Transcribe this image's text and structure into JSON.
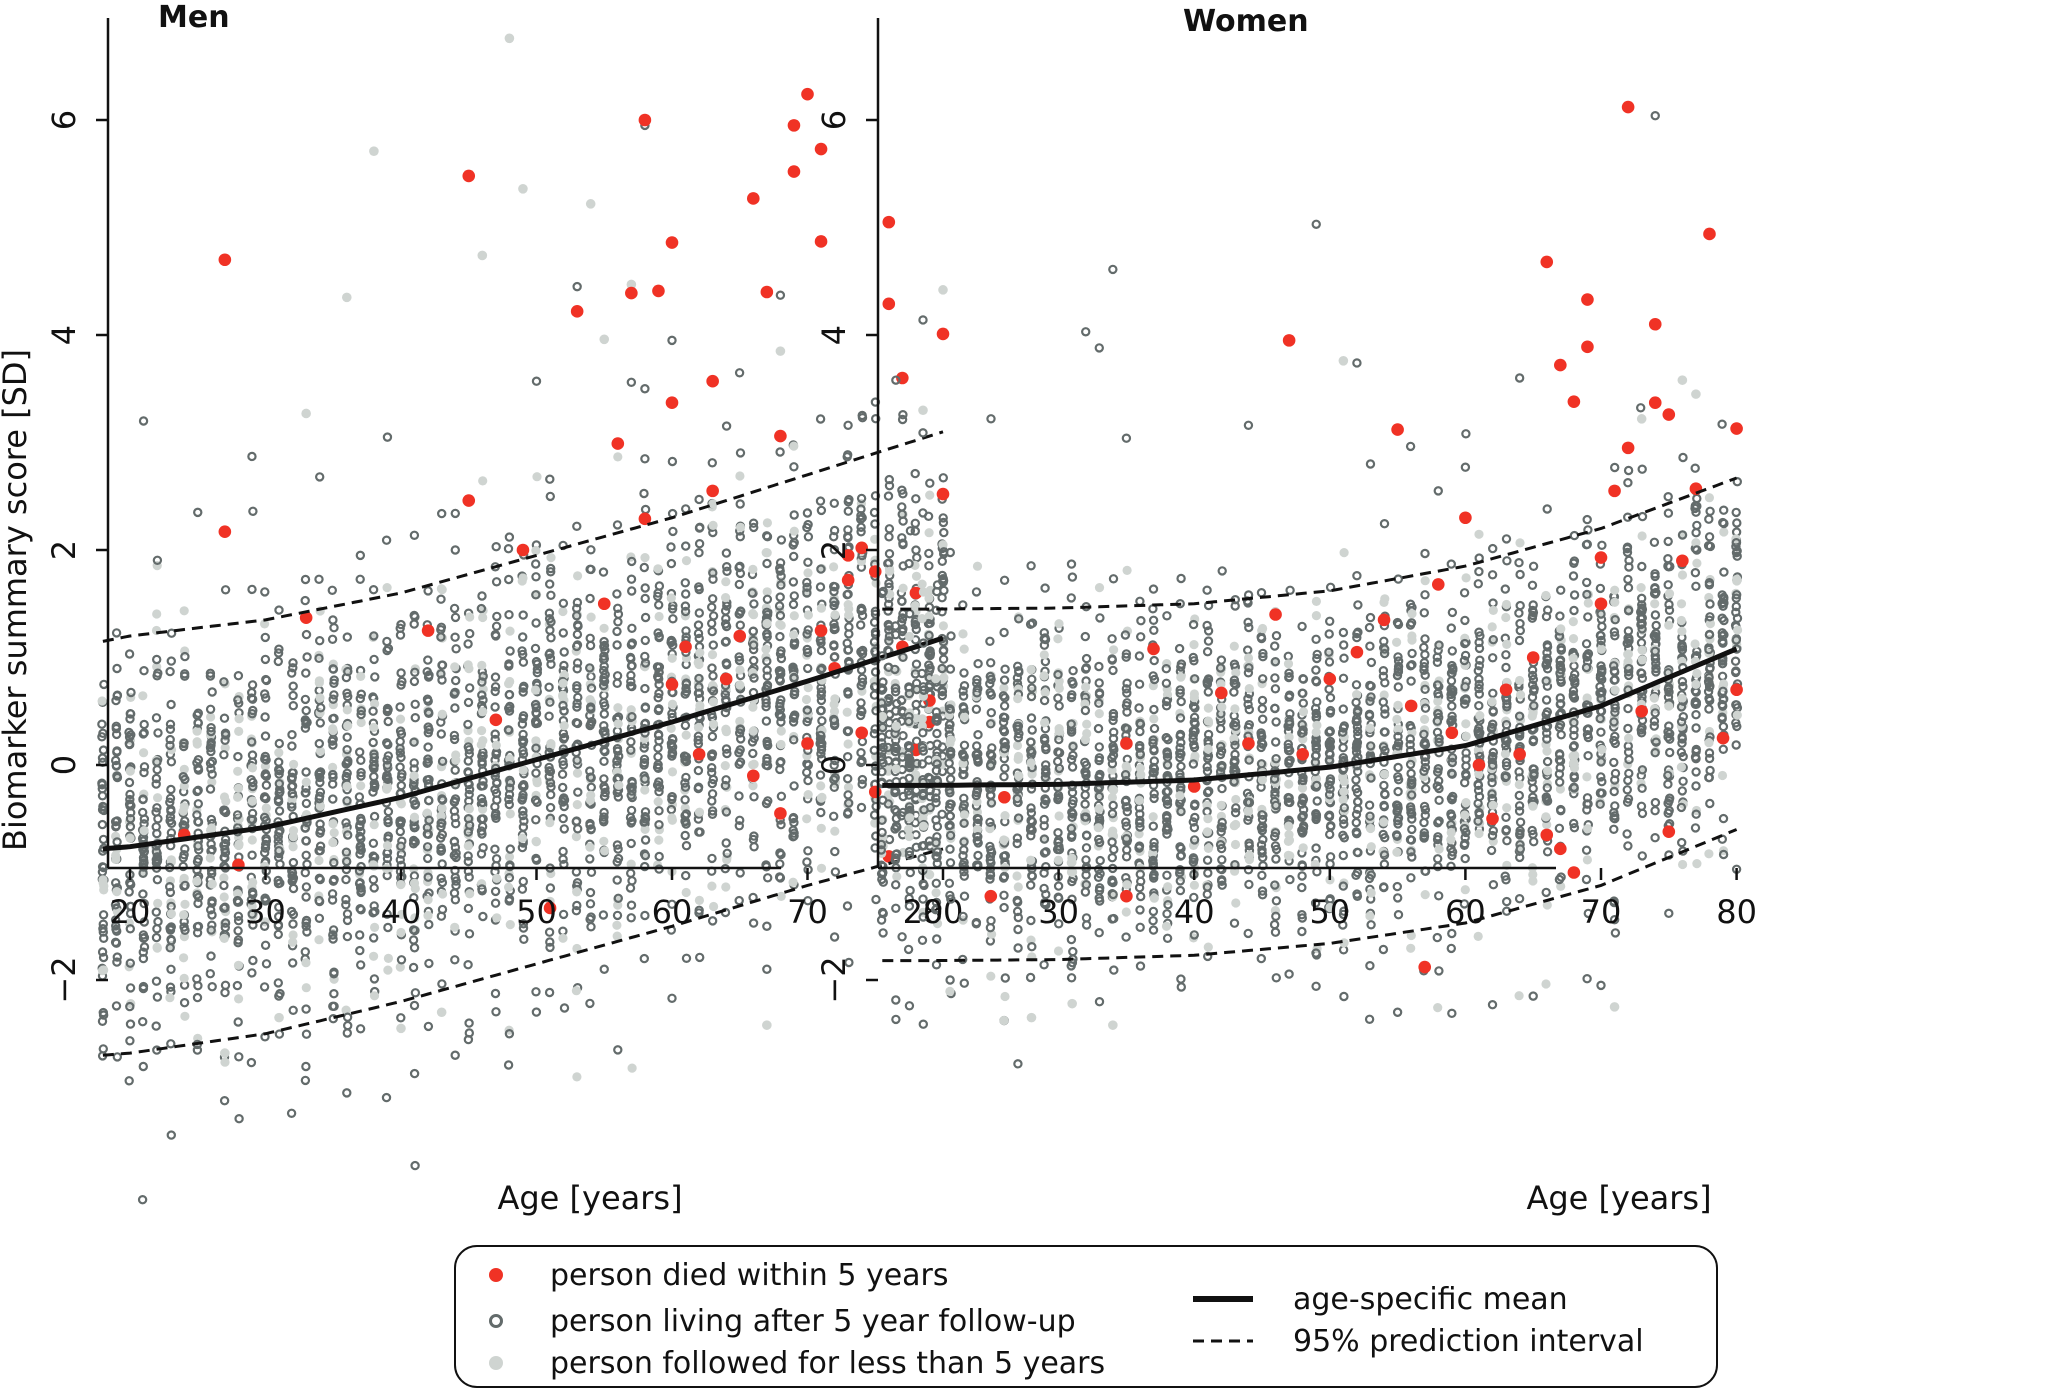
{
  "colors": {
    "died": "#f03225",
    "living": "#636b6b",
    "followed_less": "#cfd4d1",
    "line": "#111111"
  },
  "ylabel": "Biomarker summary score [SD]",
  "xlabel": "Age [years]",
  "legend": {
    "died": "person died within 5 years",
    "living": "person living after 5 year follow-up",
    "followed_less": "person followed for less than 5 years",
    "mean": "age-specific mean",
    "interval": "95% prediction interval"
  },
  "chart_data": [
    {
      "type": "scatter",
      "title": "Men",
      "xlabel": "Age [years]",
      "ylabel": "Biomarker summary score [SD]",
      "xlim": [
        18,
        80
      ],
      "ylim": [
        -3.4,
        6.9
      ],
      "xticks": [
        20,
        30,
        40,
        50,
        60,
        70,
        80
      ],
      "yticks": [
        -2,
        0,
        2,
        4,
        6
      ],
      "ytick_labels": [
        "−2",
        "0",
        "2",
        "4",
        "6"
      ],
      "grid": false,
      "legend_position": "bottom",
      "mean_curve": {
        "name": "age-specific mean",
        "x": [
          18,
          20,
          30,
          40,
          50,
          60,
          70,
          80
        ],
        "y": [
          -0.78,
          -0.76,
          -0.58,
          -0.3,
          0.05,
          0.4,
          0.78,
          1.18
        ]
      },
      "interval_upper": {
        "name": "95% prediction interval",
        "x": [
          18,
          20,
          30,
          40,
          50,
          60,
          70,
          80
        ],
        "y": [
          1.15,
          1.2,
          1.35,
          1.6,
          1.95,
          2.3,
          2.7,
          3.1
        ]
      },
      "interval_lower": {
        "name": "95% prediction interval",
        "x": [
          18,
          20,
          30,
          40,
          50,
          60,
          70,
          80
        ],
        "y": [
          -2.7,
          -2.68,
          -2.5,
          -2.2,
          -1.85,
          -1.5,
          -1.12,
          -0.78
        ]
      },
      "died_points": {
        "x": [
          27,
          27,
          33,
          45,
          45,
          49,
          53,
          56,
          57,
          58,
          59,
          60,
          60,
          61,
          63,
          66,
          67,
          68,
          69,
          69,
          70,
          71,
          71,
          73,
          76,
          76,
          77,
          78,
          80,
          80,
          24,
          28,
          42,
          47,
          51,
          55,
          62,
          64,
          65,
          72,
          74,
          75,
          79,
          58,
          66,
          68,
          70,
          73,
          75,
          77,
          79,
          60,
          63,
          71,
          74,
          76,
          78
        ],
        "y": [
          4.7,
          2.17,
          1.37,
          5.48,
          2.46,
          2.0,
          4.22,
          2.99,
          4.39,
          6.0,
          4.41,
          4.86,
          3.37,
          1.1,
          3.57,
          5.27,
          4.4,
          3.06,
          5.95,
          5.52,
          6.24,
          5.73,
          4.87,
          1.72,
          5.05,
          4.29,
          3.6,
          1.6,
          4.01,
          2.52,
          -0.65,
          -0.93,
          1.25,
          0.42,
          -1.33,
          1.5,
          0.1,
          0.8,
          1.2,
          0.9,
          0.3,
          1.8,
          0.6,
          2.29,
          -0.1,
          -0.45,
          0.2,
          1.95,
          -0.25,
          1.1,
          0.4,
          0.75,
          2.55,
          1.25,
          2.02,
          -0.85,
          0.14
        ]
      },
      "living_points": {
        "x": [
          21,
          34,
          37,
          39,
          48,
          50,
          53,
          57,
          58,
          60,
          62,
          68,
          36,
          29,
          25,
          58,
          68,
          67,
          35,
          41,
          44,
          48,
          55,
          56,
          58,
          63,
          67,
          72
        ],
        "y": [
          3.2,
          2.68,
          1.95,
          3.05,
          2.12,
          3.57,
          4.45,
          3.56,
          5.95,
          3.95,
          2.47,
          4.37,
          -3.05,
          2.87,
          2.35,
          3.5,
          -1.05,
          -1.5,
          -2.36,
          -1.7,
          -2.7,
          -2.5,
          -1.9,
          -2.65,
          -1.4,
          -1.45,
          -1.9,
          -1.6
        ]
      },
      "followed_less_points": {
        "x": [
          38,
          48,
          49,
          54,
          36,
          33,
          46,
          55,
          57,
          68,
          80,
          67,
          27,
          31,
          40,
          43,
          79
        ],
        "y": [
          5.71,
          6.76,
          5.36,
          5.22,
          4.35,
          3.27,
          4.74,
          3.96,
          4.47,
          3.85,
          4.42,
          -2.42,
          -2.68,
          -2.35,
          -2.45,
          -2.3,
          -1.02
        ]
      }
    },
    {
      "type": "scatter",
      "title": "Women",
      "xlabel": "Age [years]",
      "ylabel": "",
      "xlim": [
        17,
        80
      ],
      "ylim": [
        -3.4,
        6.9
      ],
      "xticks": [
        20,
        30,
        40,
        50,
        60,
        70,
        80
      ],
      "yticks": [
        -2,
        0,
        2,
        4,
        6
      ],
      "ytick_labels": [
        "−2",
        "0",
        "2",
        "4",
        "6"
      ],
      "grid": false,
      "legend_position": "bottom",
      "mean_curve": {
        "name": "age-specific mean",
        "x": [
          17,
          20,
          30,
          40,
          50,
          60,
          70,
          80
        ],
        "y": [
          -0.19,
          -0.19,
          -0.18,
          -0.14,
          -0.02,
          0.18,
          0.55,
          1.08
        ]
      },
      "interval_upper": {
        "name": "95% prediction interval",
        "x": [
          17,
          20,
          30,
          40,
          50,
          60,
          70,
          80
        ],
        "y": [
          1.45,
          1.45,
          1.46,
          1.5,
          1.62,
          1.85,
          2.2,
          2.67
        ]
      },
      "interval_lower": {
        "name": "95% prediction interval",
        "x": [
          17,
          20,
          30,
          40,
          50,
          60,
          70,
          80
        ],
        "y": [
          -1.82,
          -1.82,
          -1.81,
          -1.77,
          -1.66,
          -1.47,
          -1.12,
          -0.6
        ]
      },
      "died_points": {
        "x": [
          47,
          55,
          60,
          66,
          67,
          68,
          69,
          69,
          70,
          71,
          72,
          72,
          74,
          74,
          75,
          77,
          78,
          80,
          26,
          25,
          35,
          57,
          67,
          68,
          58,
          35,
          37,
          40,
          42,
          44,
          46,
          48,
          50,
          52,
          54,
          59,
          61,
          62,
          63,
          64,
          65,
          66,
          70,
          73,
          75,
          76,
          79,
          80,
          56
        ],
        "y": [
          3.95,
          3.12,
          2.3,
          4.68,
          3.72,
          3.38,
          4.33,
          3.89,
          1.93,
          2.55,
          6.12,
          2.95,
          4.1,
          3.37,
          3.26,
          2.57,
          4.94,
          3.13,
          -0.3,
          -1.22,
          -1.22,
          -1.88,
          -0.78,
          -1.0,
          1.68,
          0.2,
          1.08,
          -0.2,
          0.67,
          0.2,
          1.4,
          0.1,
          0.8,
          1.05,
          1.35,
          0.3,
          0.0,
          -0.5,
          0.7,
          0.1,
          1.0,
          -0.65,
          1.5,
          0.5,
          -0.62,
          1.9,
          0.25,
          0.7,
          0.55
        ]
      },
      "living_points": {
        "x": [
          18,
          20,
          20,
          32,
          33,
          34,
          35,
          44,
          49,
          52,
          53,
          58,
          60,
          64,
          73,
          74,
          75,
          27,
          19,
          22,
          55,
          59,
          62,
          65,
          70,
          80
        ],
        "y": [
          3.58,
          4.14,
          3.09,
          4.03,
          3.88,
          4.61,
          3.04,
          3.16,
          5.03,
          3.74,
          2.8,
          2.55,
          2.77,
          3.6,
          1.55,
          6.04,
          -1.38,
          -2.78,
          -2.24,
          -2.0,
          -2.3,
          -2.31,
          -2.23,
          -2.15,
          -2.05,
          -0.97
        ]
      },
      "followed_less_points": {
        "x": [
          20,
          51,
          73,
          76,
          77,
          71,
          28,
          31,
          34
        ],
        "y": [
          3.3,
          3.76,
          3.22,
          3.58,
          3.45,
          -2.25,
          -2.35,
          -2.22,
          -2.42
        ]
      }
    }
  ]
}
